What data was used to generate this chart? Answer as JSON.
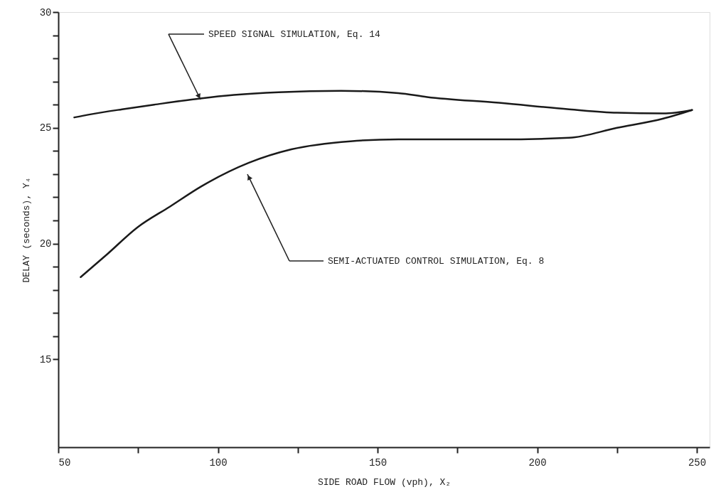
{
  "chart_data": {
    "type": "line",
    "xlabel": "SIDE ROAD FLOW (vph), X₂",
    "ylabel": "DELAY (seconds), Y₄",
    "xlim": [
      50,
      254
    ],
    "ylim": [
      11.2,
      30
    ],
    "xticks": [
      50,
      {
        "value": 75,
        "label": null
      },
      100,
      {
        "value": 125,
        "label": null
      },
      150,
      {
        "value": 175,
        "label": null
      },
      200,
      {
        "value": 225,
        "label": null
      },
      250
    ],
    "yticks": [
      15,
      {
        "value": 16,
        "label": null
      },
      {
        "value": 17,
        "label": null
      },
      {
        "value": 18,
        "label": null
      },
      {
        "value": 19,
        "label": null
      },
      20,
      {
        "value": 21,
        "label": null
      },
      {
        "value": 22,
        "label": null
      },
      {
        "value": 23,
        "label": null
      },
      {
        "value": 24,
        "label": null
      },
      25,
      {
        "value": 26,
        "label": null
      },
      {
        "value": 27,
        "label": null
      },
      {
        "value": 28,
        "label": null
      },
      {
        "value": 29,
        "label": null
      },
      30
    ],
    "grid": false,
    "marker": "none",
    "line_style": "solid",
    "series": [
      {
        "color": "#1a1a1a",
        "x": [
          55,
          60,
          70,
          80,
          94.5,
          105,
          119,
          138.6,
          156.5,
          165.5,
          188,
          210,
          225,
          239.5,
          248.5
        ],
        "values": [
          25.45,
          25.58,
          25.8,
          26.0,
          26.27,
          26.42,
          26.54,
          26.6,
          26.5,
          26.33,
          26.08,
          25.8,
          25.65,
          25.62,
          25.77
        ]
      },
      {
        "color": "#1a1a1a",
        "x": [
          57,
          65,
          74.8,
          85,
          94.8,
          109.7,
          123,
          141.5,
          156.5,
          175,
          188,
          210,
          225,
          239.5,
          248.5
        ],
        "values": [
          18.55,
          19.5,
          20.7,
          21.6,
          22.47,
          23.49,
          24.07,
          24.42,
          24.5,
          24.5,
          24.5,
          24.57,
          25.0,
          25.4,
          25.77
        ]
      }
    ],
    "annotations": [
      "SPEED SIGNAL SIMULATION, Eq. 14",
      "SEMI-ACTUATED CONTROL SIMULATION, Eq. 8"
    ]
  }
}
